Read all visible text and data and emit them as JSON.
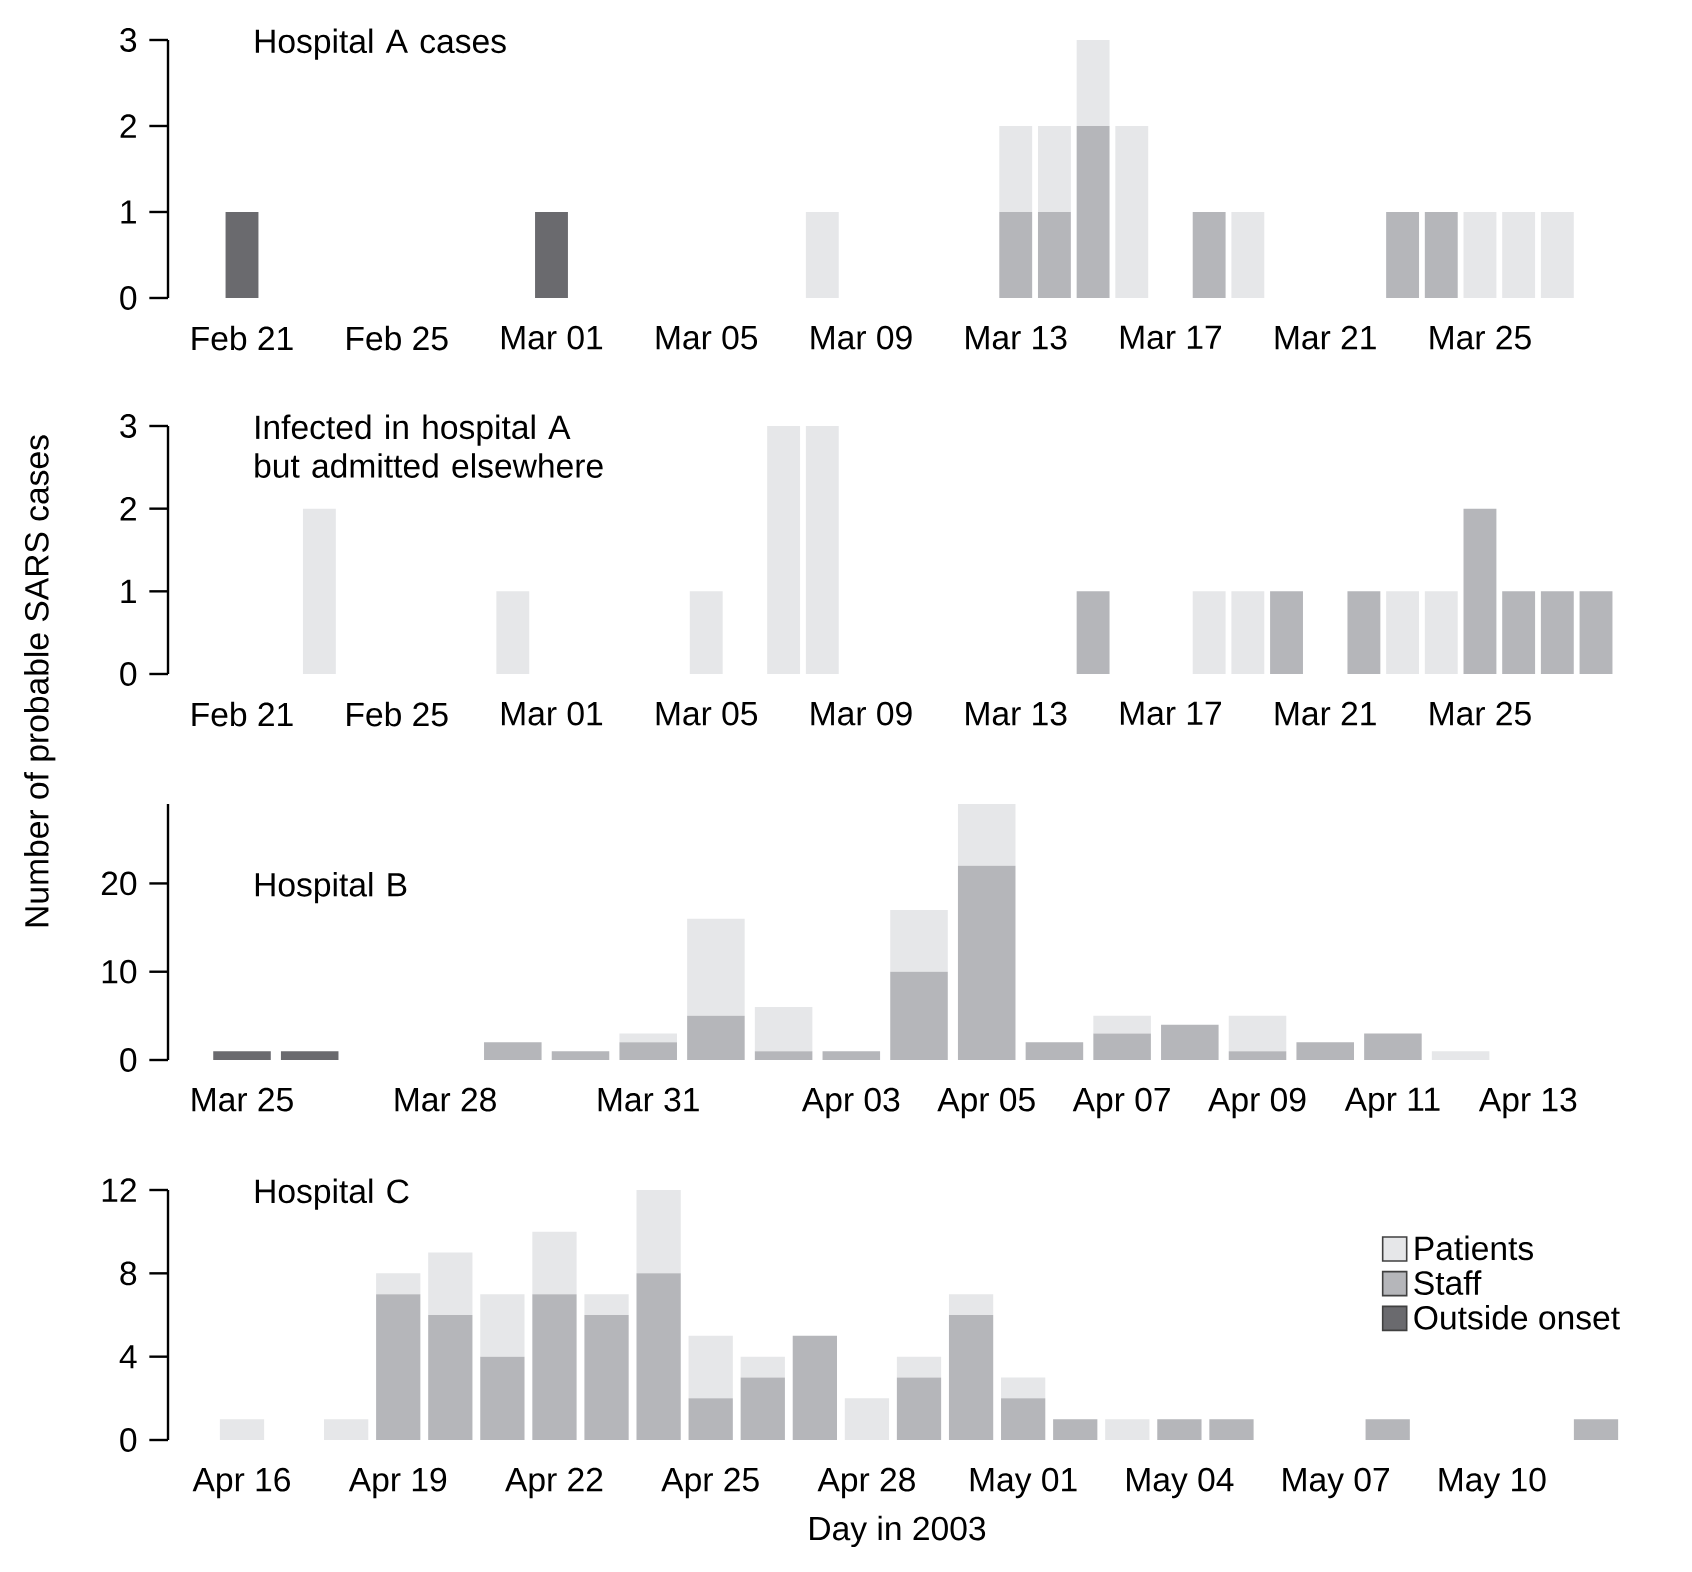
{
  "chart_data": [
    {
      "type": "bar",
      "stacked": true,
      "title": "Hospital A cases",
      "categories": [
        "Feb 21",
        null,
        null,
        null,
        "Feb 25",
        null,
        null,
        null,
        "Mar 01",
        null,
        null,
        null,
        "Mar 05",
        null,
        null,
        null,
        "Mar 09",
        null,
        null,
        null,
        "Mar 13",
        null,
        null,
        null,
        "Mar 17",
        null,
        null,
        null,
        "Mar 21",
        null,
        null,
        null,
        "Mar 25",
        null,
        null,
        null
      ],
      "series": [
        {
          "color": "#6a6a6e",
          "values": [
            1,
            0,
            0,
            0,
            0,
            0,
            0,
            0,
            1,
            0,
            0,
            0,
            0,
            0,
            0,
            0,
            0,
            0,
            0,
            0,
            0,
            0,
            0,
            0,
            0,
            0,
            0,
            0,
            0,
            0,
            0,
            0,
            0,
            0,
            0,
            0
          ]
        },
        {
          "color": "#b5b6ba",
          "values": [
            0,
            0,
            0,
            0,
            0,
            0,
            0,
            0,
            0,
            0,
            0,
            0,
            0,
            0,
            0,
            0,
            0,
            0,
            0,
            0,
            1,
            1,
            2,
            0,
            0,
            1,
            0,
            0,
            0,
            0,
            1,
            1,
            0,
            0,
            0,
            0
          ]
        },
        {
          "color": "#e6e7e9",
          "values": [
            0,
            0,
            0,
            0,
            0,
            0,
            0,
            0,
            0,
            0,
            0,
            0,
            0,
            0,
            0,
            1,
            0,
            0,
            0,
            0,
            1,
            1,
            1,
            2,
            0,
            0,
            1,
            0,
            0,
            0,
            0,
            0,
            1,
            1,
            1,
            0
          ]
        }
      ],
      "ylim": [
        0,
        3
      ],
      "yticks": [
        0,
        1,
        2,
        3
      ]
    },
    {
      "type": "bar",
      "stacked": true,
      "title": "Infected in hospital A but admitted elsewhere",
      "ylabel": "Number of probable SARS cases",
      "categories": [
        "Feb 21",
        null,
        null,
        null,
        "Feb 25",
        null,
        null,
        null,
        "Mar 01",
        null,
        null,
        null,
        "Mar 05",
        null,
        null,
        null,
        "Mar 09",
        null,
        null,
        null,
        "Mar 13",
        null,
        null,
        null,
        "Mar 17",
        null,
        null,
        null,
        "Mar 21",
        null,
        null,
        null,
        "Mar 25",
        null,
        null,
        null
      ],
      "series": [
        {
          "color": "#b5b6ba",
          "values": [
            0,
            0,
            0,
            0,
            0,
            0,
            0,
            0,
            0,
            0,
            0,
            0,
            0,
            0,
            0,
            0,
            0,
            0,
            0,
            0,
            0,
            0,
            1,
            0,
            0,
            0,
            0,
            1,
            0,
            1,
            0,
            0,
            2,
            1,
            1,
            1
          ]
        },
        {
          "color": "#e6e7e9",
          "values": [
            0,
            0,
            2,
            0,
            0,
            0,
            0,
            1,
            0,
            0,
            0,
            0,
            1,
            0,
            3,
            3,
            0,
            0,
            0,
            0,
            0,
            0,
            0,
            0,
            0,
            1,
            1,
            0,
            0,
            0,
            1,
            1,
            0,
            0,
            0,
            0
          ]
        }
      ],
      "ylim": [
        0,
        3
      ],
      "yticks": [
        0,
        1,
        2,
        3
      ]
    },
    {
      "type": "bar",
      "stacked": true,
      "title": "Hospital B",
      "categories": [
        "Mar 25",
        null,
        null,
        "Mar 28",
        null,
        null,
        "Mar 31",
        null,
        null,
        "Apr 03",
        null,
        "Apr 05",
        null,
        "Apr 07",
        null,
        "Apr 09",
        null,
        "Apr 11",
        null,
        "Apr 13",
        null
      ],
      "series": [
        {
          "color": "#6a6a6e",
          "values": [
            1,
            1,
            0,
            0,
            0,
            0,
            0,
            0,
            0,
            0,
            0,
            0,
            0,
            0,
            0,
            0,
            0,
            0,
            0,
            0,
            0
          ]
        },
        {
          "color": "#b5b6ba",
          "values": [
            0,
            0,
            0,
            0,
            2,
            1,
            2,
            5,
            1,
            1,
            10,
            22,
            2,
            3,
            4,
            1,
            2,
            3,
            0,
            0,
            0
          ]
        },
        {
          "color": "#e6e7e9",
          "values": [
            0,
            0,
            0,
            0,
            0,
            0,
            1,
            11,
            5,
            0,
            7,
            7,
            0,
            2,
            0,
            4,
            0,
            0,
            1,
            0,
            0
          ]
        }
      ],
      "ylim": [
        0,
        29
      ],
      "yticks": [
        0,
        10,
        20
      ]
    },
    {
      "type": "bar",
      "stacked": true,
      "title": "Hospital C",
      "xlabel": "Day in 2003",
      "legend": "right",
      "categories": [
        "Apr 16",
        null,
        null,
        "Apr 19",
        null,
        null,
        "Apr 22",
        null,
        null,
        "Apr 25",
        null,
        null,
        "Apr 28",
        null,
        null,
        "May 01",
        null,
        null,
        "May 04",
        null,
        null,
        "May 07",
        null,
        null,
        "May 10",
        null,
        null
      ],
      "series": [
        {
          "name": "Outside onset",
          "color": "#6a6a6e",
          "values": [
            0,
            0,
            0,
            0,
            0,
            0,
            0,
            0,
            0,
            0,
            0,
            0,
            0,
            0,
            0,
            0,
            0,
            0,
            0,
            0,
            0,
            0,
            0,
            0,
            0,
            0,
            0
          ]
        },
        {
          "name": "Staff",
          "color": "#b5b6ba",
          "values": [
            0,
            0,
            0,
            7,
            6,
            4,
            7,
            6,
            8,
            2,
            3,
            5,
            0,
            3,
            6,
            2,
            1,
            0,
            1,
            1,
            0,
            0,
            1,
            0,
            0,
            0,
            1
          ]
        },
        {
          "name": "Patients",
          "color": "#e6e7e9",
          "values": [
            1,
            0,
            1,
            1,
            3,
            3,
            3,
            1,
            4,
            3,
            1,
            0,
            2,
            1,
            1,
            1,
            0,
            1,
            0,
            0,
            0,
            0,
            0,
            0,
            0,
            0,
            0
          ]
        }
      ],
      "ylim": [
        0,
        12
      ],
      "yticks": [
        0,
        4,
        8,
        12
      ]
    }
  ]
}
